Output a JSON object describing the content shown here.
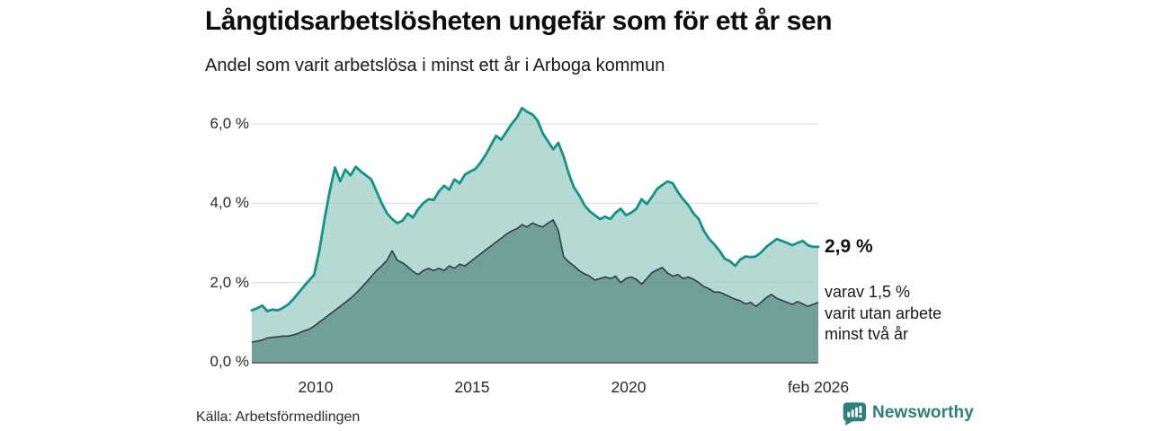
{
  "header": {
    "title": "Långtidsarbetslösheten ungefär som för ett år sen",
    "subtitle": "Andel som varit arbetslösa i minst ett år i Arboga kommun"
  },
  "chart_data": {
    "type": "area",
    "title": "Långtidsarbetslösheten ungefär som för ett år sen",
    "subtitle": "Andel som varit arbetslösa i minst ett år i Arboga kommun",
    "unit": "%",
    "x_start": "2008-01",
    "x_end": "2026-02",
    "point_interval_months": 2,
    "ylim": [
      0,
      6.6
    ],
    "grid": true,
    "legend_position": "direct-labels-right",
    "yticks": [
      {
        "value": 0,
        "label": "0,0 %"
      },
      {
        "value": 2,
        "label": "2,0 %"
      },
      {
        "value": 4,
        "label": "4,0 %"
      },
      {
        "value": 6,
        "label": "6,0 %"
      }
    ],
    "xticks": [
      {
        "label": "2010"
      },
      {
        "label": "2015"
      },
      {
        "label": "2020"
      },
      {
        "label": "feb 2026"
      }
    ],
    "series": [
      {
        "name": "Andel arbetslösa minst ett år",
        "end_value": 2.9,
        "end_label": "2,9 %",
        "values": [
          1.3,
          1.35,
          1.42,
          1.28,
          1.32,
          1.3,
          1.36,
          1.45,
          1.58,
          1.74,
          1.9,
          2.05,
          2.2,
          2.8,
          3.6,
          4.3,
          4.9,
          4.55,
          4.85,
          4.7,
          4.92,
          4.8,
          4.7,
          4.6,
          4.3,
          4.0,
          3.75,
          3.6,
          3.5,
          3.56,
          3.74,
          3.64,
          3.85,
          4.0,
          4.1,
          4.08,
          4.3,
          4.44,
          4.34,
          4.6,
          4.5,
          4.72,
          4.8,
          4.86,
          5.02,
          5.22,
          5.46,
          5.7,
          5.6,
          5.8,
          6.0,
          6.16,
          6.4,
          6.3,
          6.24,
          6.08,
          5.76,
          5.56,
          5.36,
          5.52,
          5.18,
          4.74,
          4.4,
          4.2,
          3.95,
          3.8,
          3.7,
          3.6,
          3.66,
          3.6,
          3.76,
          3.86,
          3.7,
          3.76,
          3.86,
          4.1,
          3.98,
          4.16,
          4.36,
          4.46,
          4.55,
          4.5,
          4.28,
          4.1,
          3.95,
          3.74,
          3.6,
          3.3,
          3.1,
          2.96,
          2.8,
          2.6,
          2.54,
          2.42,
          2.58,
          2.66,
          2.64,
          2.66,
          2.76,
          2.9,
          3.0,
          3.1,
          3.05,
          3.0,
          2.94,
          3.0,
          3.05,
          2.94,
          2.9,
          2.9
        ]
      },
      {
        "name": "varav utan arbete minst två år",
        "end_value": 1.5,
        "end_label": "1,5 %",
        "values": [
          0.5,
          0.52,
          0.55,
          0.6,
          0.62,
          0.63,
          0.65,
          0.65,
          0.68,
          0.72,
          0.78,
          0.82,
          0.9,
          1.0,
          1.1,
          1.2,
          1.3,
          1.4,
          1.5,
          1.6,
          1.72,
          1.86,
          2.0,
          2.15,
          2.3,
          2.42,
          2.56,
          2.8,
          2.56,
          2.5,
          2.4,
          2.28,
          2.2,
          2.3,
          2.36,
          2.3,
          2.36,
          2.3,
          2.42,
          2.36,
          2.46,
          2.42,
          2.52,
          2.62,
          2.72,
          2.82,
          2.92,
          3.02,
          3.12,
          3.22,
          3.3,
          3.36,
          3.46,
          3.4,
          3.5,
          3.44,
          3.4,
          3.5,
          3.58,
          3.3,
          2.65,
          2.52,
          2.42,
          2.3,
          2.22,
          2.16,
          2.06,
          2.1,
          2.14,
          2.1,
          2.16,
          2.0,
          2.1,
          2.14,
          2.08,
          1.96,
          2.1,
          2.25,
          2.32,
          2.38,
          2.24,
          2.16,
          2.2,
          2.1,
          2.14,
          2.08,
          2.0,
          1.9,
          1.84,
          1.76,
          1.76,
          1.7,
          1.64,
          1.58,
          1.54,
          1.46,
          1.5,
          1.4,
          1.5,
          1.62,
          1.7,
          1.6,
          1.55,
          1.5,
          1.45,
          1.52,
          1.46,
          1.4,
          1.45,
          1.5
        ]
      }
    ],
    "annotations": {
      "total_label": "2,9 %",
      "sub_label_lines": [
        "varav 1,5 %",
        "varit utan arbete",
        "minst två år"
      ]
    },
    "colors": {
      "line_total": "#149286",
      "fill_total": "#b5d9d3",
      "line_two_year": "#2f3e45",
      "fill_two_year": "#719f99",
      "grid": "#e4e4e4",
      "axis": "#3d3d3d"
    }
  },
  "footer": {
    "source": "Källa: Arbetsförmedlingen",
    "brand": "Newsworthy",
    "brand_color": "#2e7e79"
  }
}
